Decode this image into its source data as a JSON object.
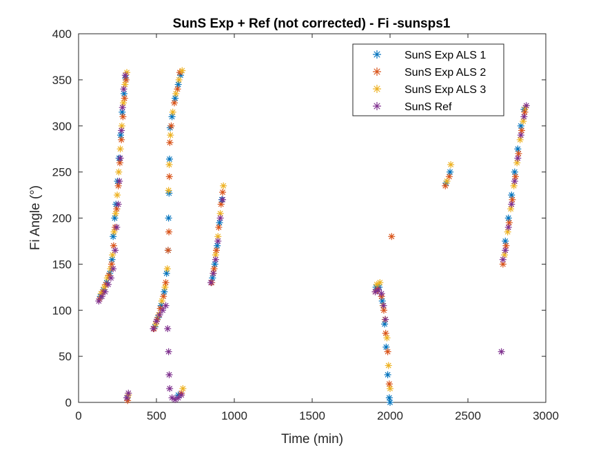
{
  "chart_data": {
    "type": "scatter",
    "title": "SunS Exp + Ref  (not corrected) - Fi -sunsps1",
    "xlabel": "Time (min)",
    "ylabel": "Fi Angle (°)",
    "xlim": [
      0,
      3000
    ],
    "ylim": [
      0,
      400
    ],
    "xticks": [
      0,
      500,
      1000,
      1500,
      2000,
      2500,
      3000
    ],
    "yticks": [
      0,
      50,
      100,
      150,
      200,
      250,
      300,
      350,
      400
    ],
    "grid": false,
    "legend_position": "top-right",
    "marker": "asterisk",
    "series": [
      {
        "name": "SunS Exp ALS 1",
        "color": "#0072BD",
        "points": [
          [
            140,
            115
          ],
          [
            160,
            122
          ],
          [
            180,
            130
          ],
          [
            200,
            140
          ],
          [
            215,
            155
          ],
          [
            222,
            180
          ],
          [
            232,
            200
          ],
          [
            240,
            215
          ],
          [
            250,
            240
          ],
          [
            260,
            265
          ],
          [
            270,
            290
          ],
          [
            280,
            315
          ],
          [
            292,
            335
          ],
          [
            302,
            352
          ],
          [
            312,
            5
          ],
          [
            490,
            82
          ],
          [
            510,
            92
          ],
          [
            530,
            105
          ],
          [
            550,
            120
          ],
          [
            565,
            140
          ],
          [
            575,
            165
          ],
          [
            578,
            200
          ],
          [
            581,
            227
          ],
          [
            584,
            264
          ],
          [
            588,
            298
          ],
          [
            600,
            310
          ],
          [
            620,
            330
          ],
          [
            640,
            345
          ],
          [
            655,
            355
          ],
          [
            640,
            8
          ],
          [
            860,
            135
          ],
          [
            875,
            150
          ],
          [
            890,
            170
          ],
          [
            905,
            195
          ],
          [
            920,
            220
          ],
          [
            1910,
            125
          ],
          [
            1930,
            125
          ],
          [
            1950,
            110
          ],
          [
            1965,
            85
          ],
          [
            1975,
            60
          ],
          [
            1985,
            30
          ],
          [
            1995,
            5
          ],
          [
            2000,
            0
          ],
          [
            2360,
            238
          ],
          [
            2385,
            250
          ],
          [
            2740,
            175
          ],
          [
            2760,
            200
          ],
          [
            2780,
            225
          ],
          [
            2800,
            250
          ],
          [
            2820,
            275
          ],
          [
            2840,
            300
          ],
          [
            2860,
            318
          ]
        ]
      },
      {
        "name": "SunS Exp ALS 2",
        "color": "#D95319",
        "points": [
          [
            135,
            112
          ],
          [
            155,
            120
          ],
          [
            175,
            128
          ],
          [
            195,
            138
          ],
          [
            212,
            150
          ],
          [
            225,
            170
          ],
          [
            235,
            190
          ],
          [
            245,
            210
          ],
          [
            255,
            235
          ],
          [
            265,
            260
          ],
          [
            275,
            285
          ],
          [
            285,
            310
          ],
          [
            295,
            330
          ],
          [
            305,
            350
          ],
          [
            315,
            2
          ],
          [
            485,
            80
          ],
          [
            505,
            90
          ],
          [
            525,
            102
          ],
          [
            545,
            115
          ],
          [
            560,
            130
          ],
          [
            575,
            165
          ],
          [
            580,
            185
          ],
          [
            583,
            245
          ],
          [
            586,
            282
          ],
          [
            595,
            300
          ],
          [
            615,
            325
          ],
          [
            635,
            340
          ],
          [
            650,
            358
          ],
          [
            660,
            10
          ],
          [
            855,
            130
          ],
          [
            870,
            145
          ],
          [
            885,
            165
          ],
          [
            900,
            190
          ],
          [
            915,
            215
          ],
          [
            925,
            228
          ],
          [
            1905,
            120
          ],
          [
            1920,
            122
          ],
          [
            1945,
            115
          ],
          [
            1960,
            100
          ],
          [
            1972,
            75
          ],
          [
            1985,
            55
          ],
          [
            1995,
            20
          ],
          [
            2010,
            180
          ],
          [
            2355,
            235
          ],
          [
            2380,
            245
          ],
          [
            2725,
            150
          ],
          [
            2745,
            170
          ],
          [
            2765,
            195
          ],
          [
            2785,
            220
          ],
          [
            2805,
            245
          ],
          [
            2825,
            270
          ],
          [
            2845,
            295
          ],
          [
            2865,
            315
          ]
        ]
      },
      {
        "name": "SunS Exp ALS 3",
        "color": "#EDB120",
        "points": [
          [
            145,
            118
          ],
          [
            165,
            125
          ],
          [
            185,
            135
          ],
          [
            205,
            145
          ],
          [
            218,
            160
          ],
          [
            228,
            185
          ],
          [
            238,
            205
          ],
          [
            248,
            225
          ],
          [
            258,
            250
          ],
          [
            268,
            275
          ],
          [
            278,
            300
          ],
          [
            288,
            325
          ],
          [
            298,
            345
          ],
          [
            310,
            358
          ],
          [
            320,
            8
          ],
          [
            495,
            85
          ],
          [
            515,
            95
          ],
          [
            535,
            110
          ],
          [
            555,
            125
          ],
          [
            570,
            145
          ],
          [
            578,
            230
          ],
          [
            582,
            258
          ],
          [
            590,
            290
          ],
          [
            605,
            315
          ],
          [
            625,
            335
          ],
          [
            645,
            350
          ],
          [
            665,
            360
          ],
          [
            670,
            15
          ],
          [
            865,
            140
          ],
          [
            880,
            160
          ],
          [
            895,
            180
          ],
          [
            910,
            205
          ],
          [
            930,
            235
          ],
          [
            1915,
            128
          ],
          [
            1935,
            130
          ],
          [
            1955,
            105
          ],
          [
            1968,
            90
          ],
          [
            1980,
            70
          ],
          [
            1990,
            40
          ],
          [
            2000,
            15
          ],
          [
            2365,
            240
          ],
          [
            2390,
            258
          ],
          [
            2735,
            160
          ],
          [
            2755,
            185
          ],
          [
            2775,
            210
          ],
          [
            2795,
            235
          ],
          [
            2815,
            260
          ],
          [
            2835,
            285
          ],
          [
            2855,
            305
          ],
          [
            2870,
            320
          ]
        ]
      },
      {
        "name": "SunS Ref",
        "color": "#7E2F8E",
        "points": [
          [
            130,
            110
          ],
          [
            150,
            115
          ],
          [
            170,
            120
          ],
          [
            190,
            128
          ],
          [
            208,
            135
          ],
          [
            222,
            145
          ],
          [
            235,
            165
          ],
          [
            245,
            190
          ],
          [
            255,
            215
          ],
          [
            262,
            240
          ],
          [
            268,
            265
          ],
          [
            275,
            295
          ],
          [
            282,
            320
          ],
          [
            290,
            340
          ],
          [
            300,
            355
          ],
          [
            310,
            5
          ],
          [
            320,
            10
          ],
          [
            480,
            80
          ],
          [
            500,
            88
          ],
          [
            520,
            95
          ],
          [
            540,
            100
          ],
          [
            560,
            105
          ],
          [
            572,
            80
          ],
          [
            578,
            55
          ],
          [
            582,
            30
          ],
          [
            585,
            15
          ],
          [
            600,
            5
          ],
          [
            620,
            3
          ],
          [
            640,
            5
          ],
          [
            660,
            8
          ],
          [
            850,
            130
          ],
          [
            865,
            140
          ],
          [
            880,
            155
          ],
          [
            895,
            175
          ],
          [
            910,
            200
          ],
          [
            925,
            220
          ],
          [
            1905,
            120
          ],
          [
            1925,
            122
          ],
          [
            1945,
            118
          ],
          [
            1958,
            105
          ],
          [
            1970,
            90
          ],
          [
            2715,
            55
          ],
          [
            2725,
            155
          ],
          [
            2740,
            165
          ],
          [
            2760,
            190
          ],
          [
            2780,
            215
          ],
          [
            2800,
            240
          ],
          [
            2820,
            265
          ],
          [
            2840,
            290
          ],
          [
            2860,
            310
          ],
          [
            2875,
            322
          ]
        ]
      }
    ]
  }
}
